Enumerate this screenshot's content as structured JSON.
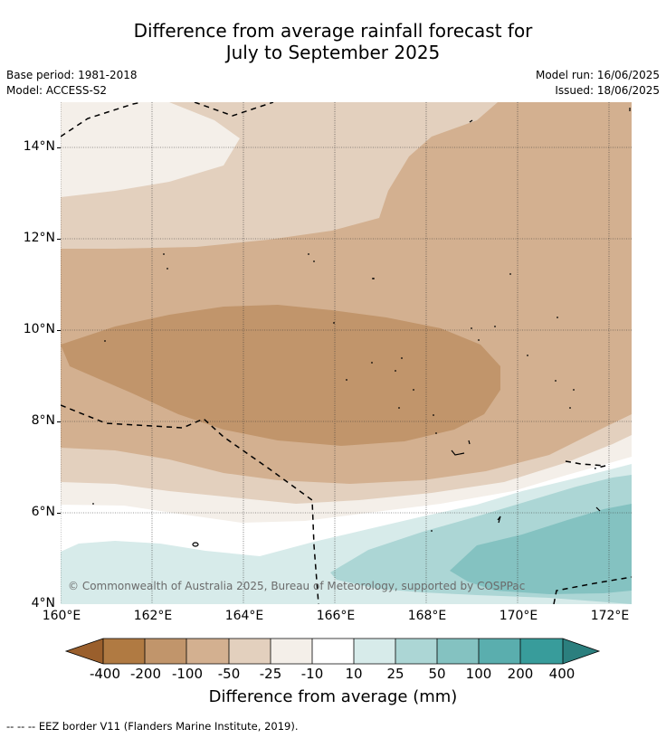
{
  "title_line1": "Difference from average rainfall forecast for",
  "title_line2": "July to September 2025",
  "meta": {
    "base_period": "Base period: 1981-2018",
    "model": "Model: ACCESS-S2",
    "model_run": "Model run: 16/06/2025",
    "issued": "Issued: 18/06/2025"
  },
  "map": {
    "copyright": "© Commonwealth of Australia 2025, Bureau of Meteorology, supported by COSPPac",
    "lat_labels": [
      "14°N",
      "12°N",
      "10°N",
      "8°N",
      "6°N",
      "4°N"
    ],
    "lon_labels": [
      "160°E",
      "162°E",
      "164°E",
      "166°E",
      "168°E",
      "170°E",
      "172°E"
    ]
  },
  "colorbar": {
    "title": "Difference from average (mm)",
    "tick_labels": [
      "-400",
      "-200",
      "-100",
      "-50",
      "-25",
      "-10",
      "10",
      "25",
      "50",
      "100",
      "200",
      "400"
    ],
    "colors": [
      "#9a5f2c",
      "#b07a42",
      "#c1956b",
      "#d3b090",
      "#e3d0be",
      "#f4efe9",
      "#ffffff",
      "#d7ebea",
      "#acd6d5",
      "#84c2c1",
      "#5aaeae",
      "#389c9b",
      "#2b7f7e"
    ]
  },
  "legend_text": "--  --  -- EEZ border V11 (Flanders Marine Institute, 2019)."
}
